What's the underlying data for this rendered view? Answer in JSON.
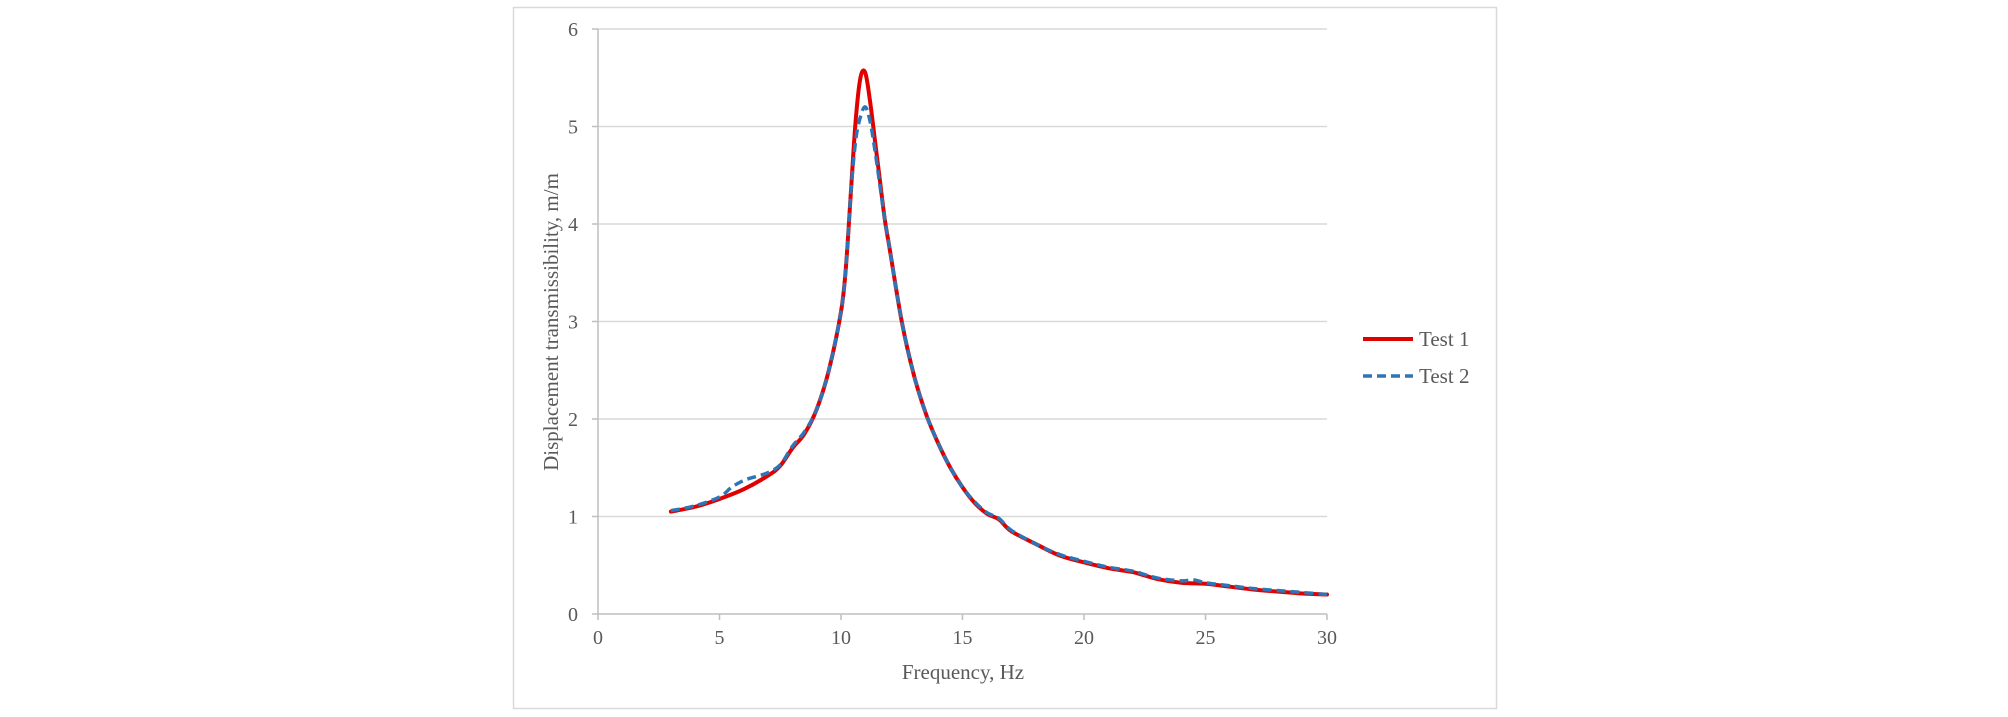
{
  "chart_data": {
    "type": "line",
    "title": "",
    "xlabel": "Frequency, Hz",
    "ylabel": "Displacement transmissibility, m/m",
    "xlim": [
      0,
      30
    ],
    "ylim": [
      0,
      6
    ],
    "xticks": [
      0,
      5,
      10,
      15,
      20,
      25,
      30
    ],
    "yticks": [
      0,
      1,
      2,
      3,
      4,
      5,
      6
    ],
    "x_tick_labels": [
      "0",
      "5",
      "10",
      "15",
      "20",
      "25",
      "30"
    ],
    "y_tick_labels": [
      "0",
      "1",
      "2",
      "3",
      "4",
      "5",
      "6"
    ],
    "grid": "horizontal",
    "legend_position": "right",
    "series": [
      {
        "name": "Test 1",
        "color": "#e00000",
        "style": "solid",
        "x": [
          3,
          4,
          5,
          6,
          7,
          7.5,
          8,
          8.5,
          9,
          9.5,
          10,
          10.2,
          10.4,
          10.6,
          10.8,
          11,
          11.2,
          11.4,
          11.6,
          11.8,
          12,
          12.5,
          13,
          13.5,
          14,
          14.5,
          15,
          15.5,
          16,
          16.5,
          17,
          18,
          19,
          20,
          21,
          22,
          23,
          24,
          25,
          26,
          27,
          28,
          29,
          30
        ],
        "y": [
          1.05,
          1.1,
          1.18,
          1.28,
          1.42,
          1.52,
          1.7,
          1.85,
          2.1,
          2.5,
          3.1,
          3.55,
          4.3,
          5.05,
          5.5,
          5.55,
          5.25,
          4.85,
          4.45,
          4.05,
          3.75,
          3.0,
          2.45,
          2.05,
          1.75,
          1.5,
          1.3,
          1.14,
          1.03,
          0.97,
          0.85,
          0.72,
          0.6,
          0.53,
          0.47,
          0.43,
          0.36,
          0.32,
          0.31,
          0.28,
          0.25,
          0.23,
          0.21,
          0.2
        ]
      },
      {
        "name": "Test 2",
        "color": "#2e75b6",
        "style": "dashed",
        "x": [
          3,
          4,
          5,
          5.5,
          6,
          6.5,
          7,
          7.5,
          8,
          8.5,
          9,
          9.5,
          10,
          10.2,
          10.4,
          10.6,
          10.8,
          11,
          11.2,
          11.4,
          11.6,
          11.8,
          12,
          12.5,
          13,
          13.5,
          14,
          14.5,
          15,
          15.5,
          16,
          16.5,
          17,
          18,
          19,
          20,
          21,
          22,
          23,
          24,
          24.5,
          25,
          26,
          27,
          28,
          29,
          30
        ],
        "y": [
          1.06,
          1.11,
          1.2,
          1.3,
          1.37,
          1.41,
          1.45,
          1.53,
          1.72,
          1.87,
          2.1,
          2.5,
          3.1,
          3.55,
          4.3,
          4.85,
          5.1,
          5.2,
          5.05,
          4.75,
          4.4,
          4.05,
          3.75,
          3.0,
          2.45,
          2.05,
          1.75,
          1.5,
          1.3,
          1.15,
          1.04,
          0.98,
          0.86,
          0.72,
          0.61,
          0.54,
          0.48,
          0.44,
          0.37,
          0.34,
          0.35,
          0.32,
          0.29,
          0.26,
          0.24,
          0.22,
          0.2
        ]
      }
    ]
  }
}
